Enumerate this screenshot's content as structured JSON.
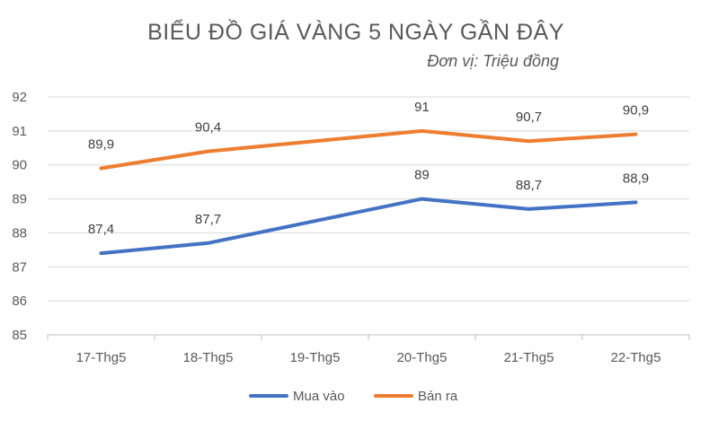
{
  "chart_data": {
    "type": "line",
    "title": "BIỂU ĐỒ GIÁ VÀNG 5 NGÀY GẦN ĐÂY",
    "subtitle": "Đơn vị: Triệu đồng",
    "categories": [
      "17-Thg5",
      "18-Thg5",
      "19-Thg5",
      "20-Thg5",
      "21-Thg5",
      "22-Thg5"
    ],
    "ylim": [
      85,
      92
    ],
    "yticks": [
      85,
      86,
      87,
      88,
      89,
      90,
      91,
      92
    ],
    "grid": true,
    "legend_position": "bottom",
    "series": [
      {
        "name": "Mua vào",
        "color": "#4472C4",
        "values": [
          87.4,
          87.7,
          88.35,
          89,
          88.7,
          88.9
        ],
        "labels": [
          "87,4",
          "87,7",
          "",
          "89",
          "88,7",
          "88,9"
        ]
      },
      {
        "name": "Bán ra",
        "color": "#ED7D31",
        "values": [
          89.9,
          90.4,
          90.7,
          91,
          90.7,
          90.9
        ],
        "labels": [
          "89,9",
          "90,4",
          "",
          "91",
          "90,7",
          "90,9"
        ]
      }
    ]
  }
}
